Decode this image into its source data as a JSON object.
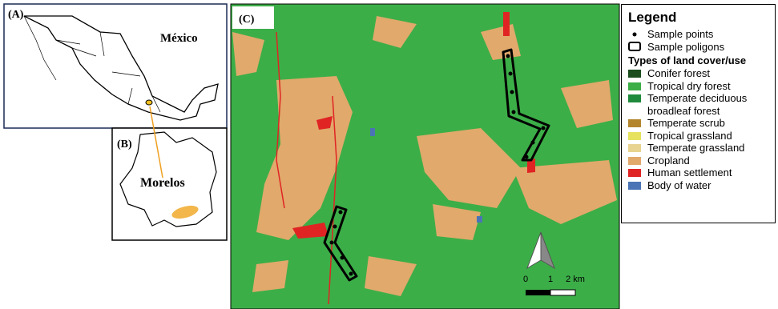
{
  "panel_a": {
    "label": "(A)",
    "country": "México"
  },
  "panel_b": {
    "label": "(B)",
    "state": "Morelos"
  },
  "panel_c": {
    "label": "(C)",
    "scale_labels": [
      "0",
      "1",
      "2 km"
    ]
  },
  "legend": {
    "title": "Legend",
    "symbols": [
      "Sample points",
      "Sample poligons"
    ],
    "classes_title": "Types of land cover/use",
    "classes": [
      {
        "label": "Conifer forest",
        "color": "#1b4d1e"
      },
      {
        "label": "Tropical dry forest",
        "color": "#3cae48"
      },
      {
        "label": "Temperate deciduous broadleaf forest",
        "color": "#1f8a3c"
      },
      {
        "label": "Temperate scrub",
        "color": "#b3862e"
      },
      {
        "label": "Tropical grassland",
        "color": "#e6e25e"
      },
      {
        "label": "Temperate grassland",
        "color": "#e8d490"
      },
      {
        "label": "Cropland",
        "color": "#e1a96b"
      },
      {
        "label": "Human settlement",
        "color": "#e02424"
      },
      {
        "label": "Body of water",
        "color": "#4a74b6"
      }
    ]
  }
}
